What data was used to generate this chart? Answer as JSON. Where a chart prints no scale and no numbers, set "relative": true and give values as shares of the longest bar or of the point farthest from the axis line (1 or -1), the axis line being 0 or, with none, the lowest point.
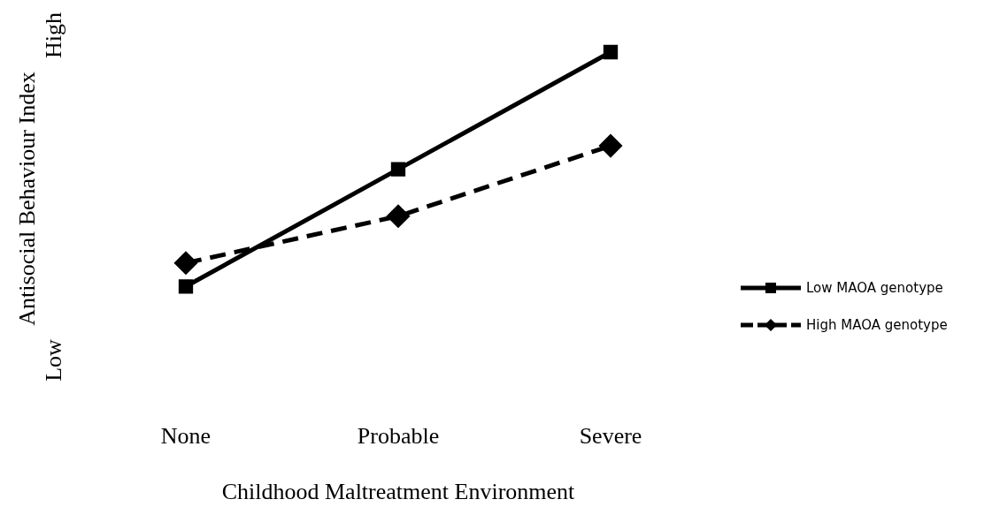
{
  "chart_data": {
    "type": "line",
    "xlabel": "Childhood Maltreatment Environment",
    "ylabel": "Antisocial Behaviour Index",
    "annotations": [
      "Low",
      "High"
    ],
    "relative": true,
    "categories": [
      "None",
      "Probable",
      "Severe"
    ],
    "legend": "right",
    "grid": false,
    "series": [
      {
        "name": "Low MAOA genotype",
        "color": "#000000",
        "marker": "square",
        "line_style": "solid",
        "values": [
          0,
          0.5,
          1
        ]
      },
      {
        "name": "High MAOA genotype",
        "color": "#000000",
        "marker": "diamond",
        "line_style": "dashed",
        "values": [
          0.1,
          0.3,
          0.6
        ]
      }
    ]
  }
}
